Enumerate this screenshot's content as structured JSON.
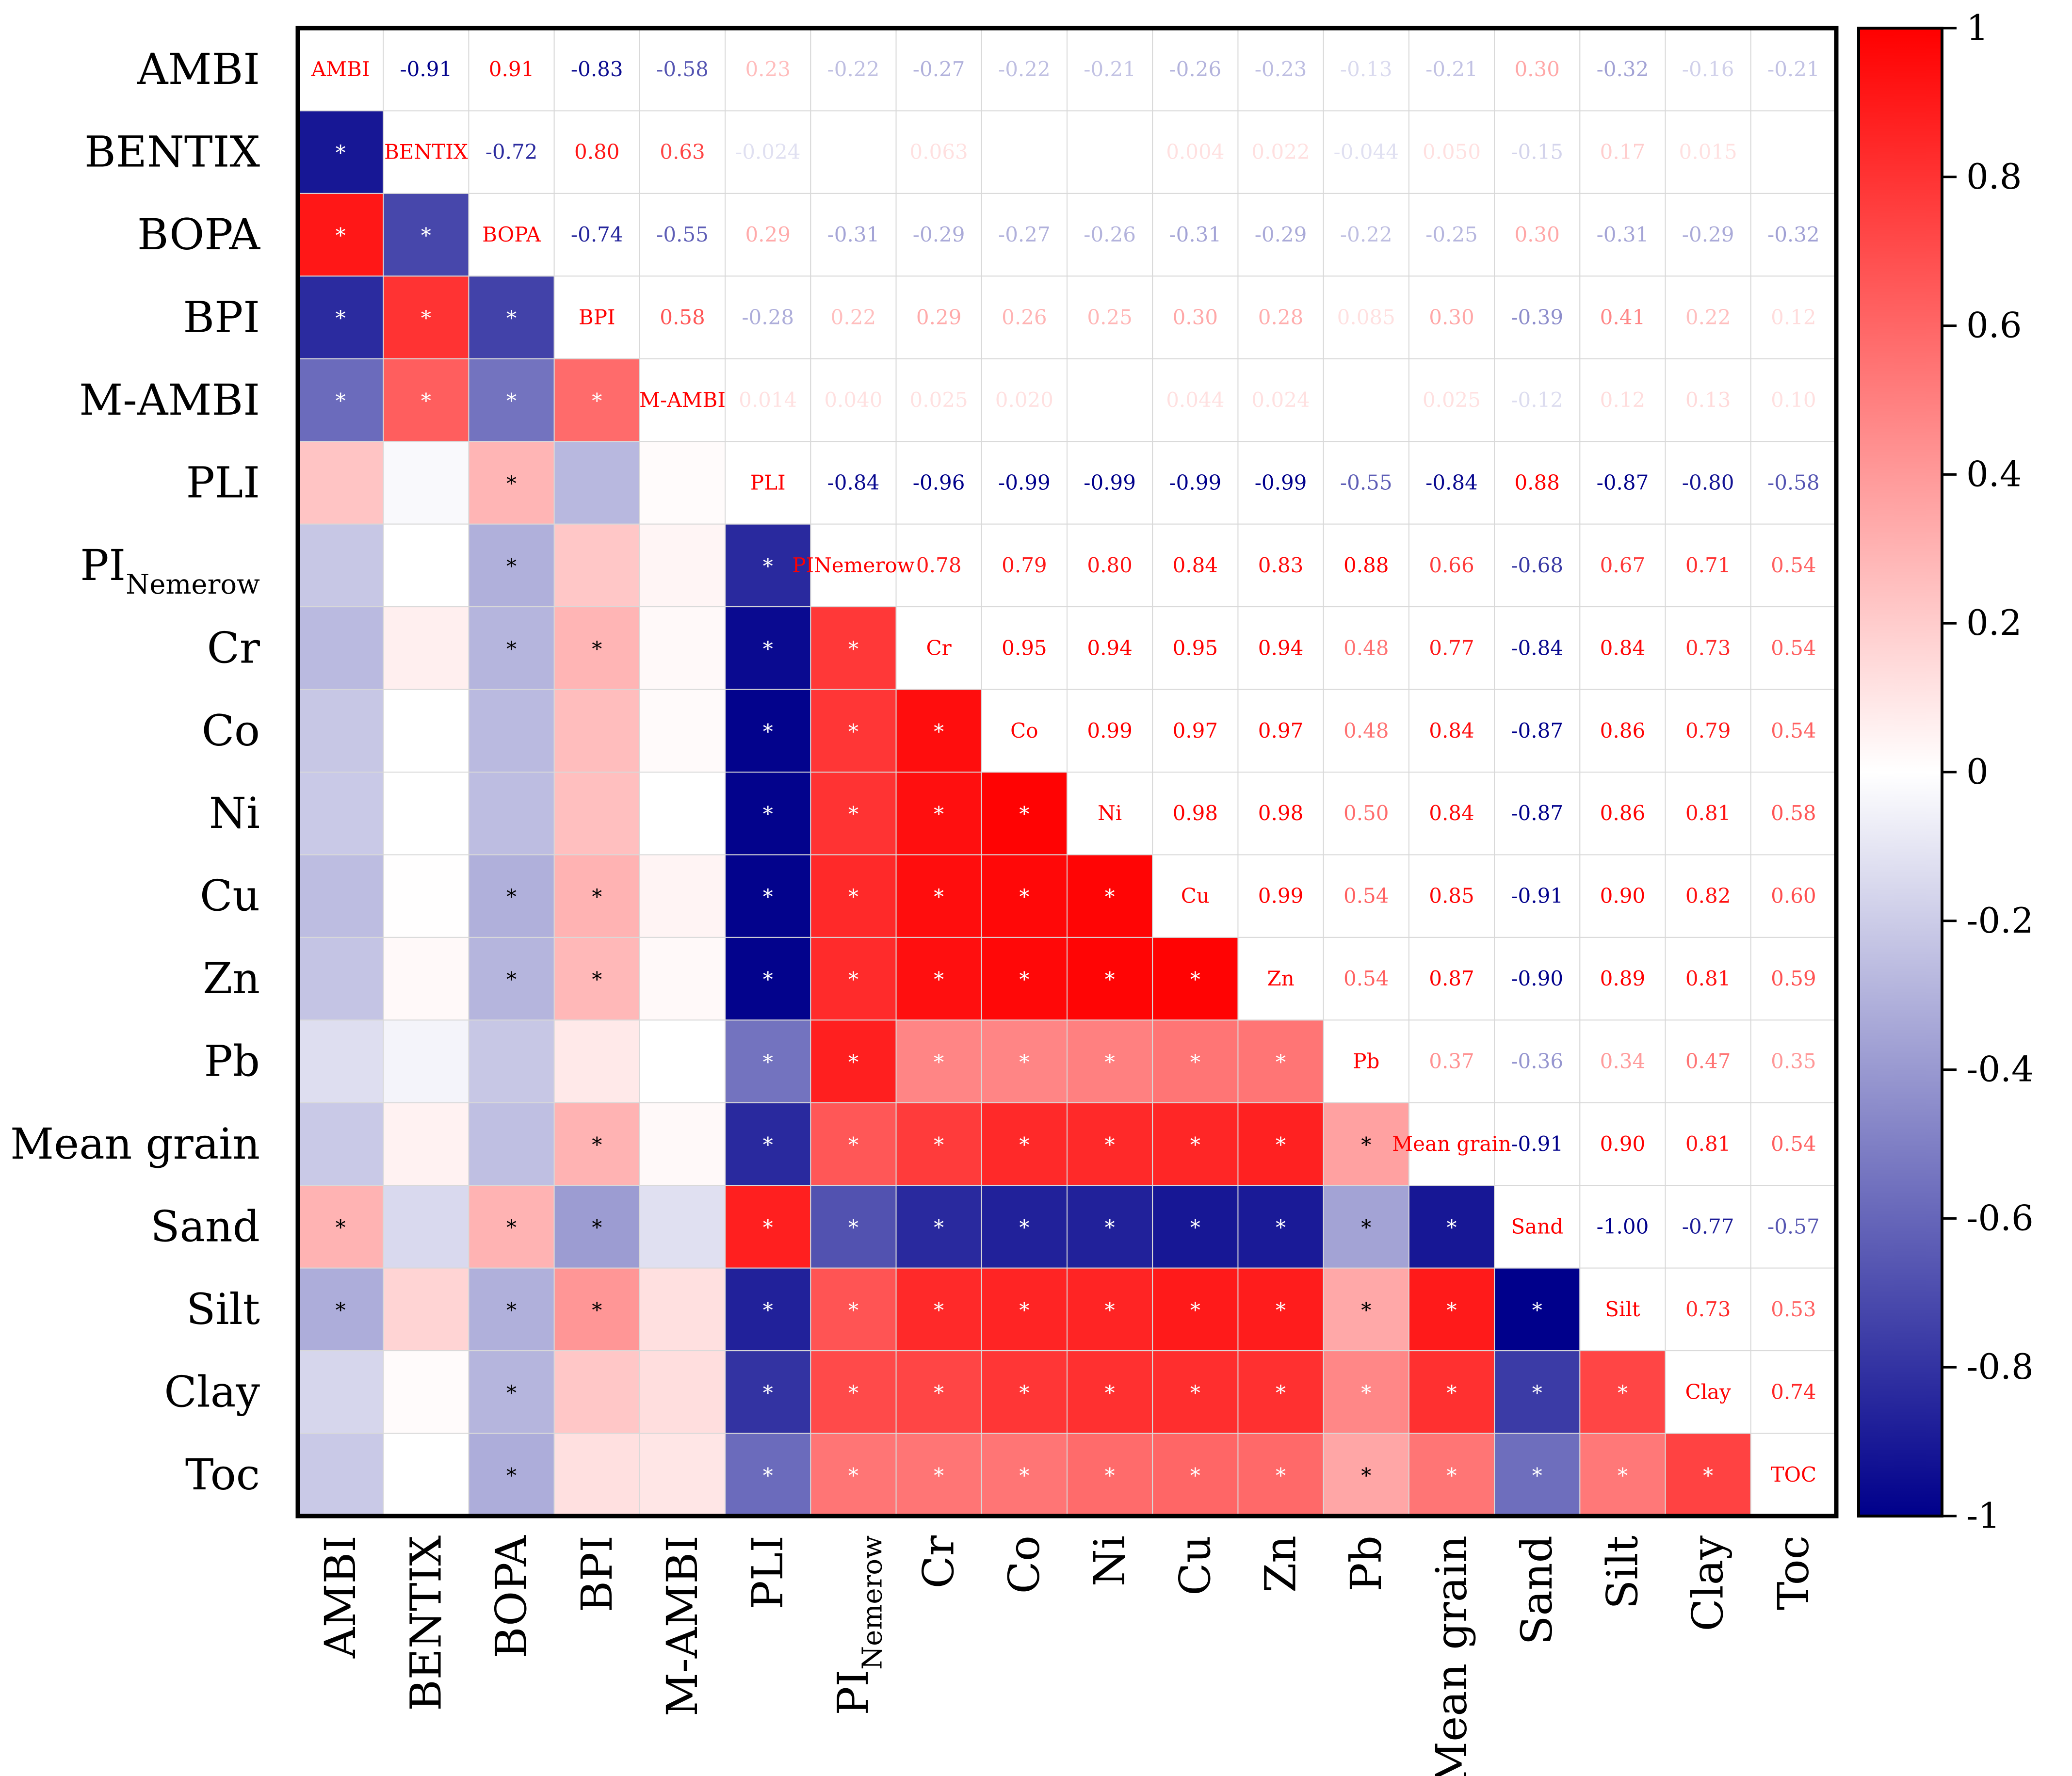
{
  "chart_data": {
    "type": "heatmap",
    "title": "",
    "xlabel": "",
    "ylabel": "",
    "variables": [
      "AMBI",
      "BENTIX",
      "BOPA",
      "BPI",
      "M-AMBI",
      "PLI",
      "PI_Nemerow",
      "Cr",
      "Co",
      "Ni",
      "Cu",
      "Zn",
      "Pb",
      "Mean grain",
      "Sand",
      "Silt",
      "Clay",
      "Toc"
    ],
    "row_labels": [
      {
        "text": "AMBI",
        "sub": ""
      },
      {
        "text": "BENTIX",
        "sub": ""
      },
      {
        "text": "BOPA",
        "sub": ""
      },
      {
        "text": "BPI",
        "sub": ""
      },
      {
        "text": "M-AMBI",
        "sub": ""
      },
      {
        "text": "PLI",
        "sub": ""
      },
      {
        "text": "PI",
        "sub": "Nemerow"
      },
      {
        "text": "Cr",
        "sub": ""
      },
      {
        "text": "Co",
        "sub": ""
      },
      {
        "text": "Ni",
        "sub": ""
      },
      {
        "text": "Cu",
        "sub": ""
      },
      {
        "text": "Zn",
        "sub": ""
      },
      {
        "text": "Pb",
        "sub": ""
      },
      {
        "text": "Mean grain",
        "sub": ""
      },
      {
        "text": "Sand",
        "sub": ""
      },
      {
        "text": "Silt",
        "sub": ""
      },
      {
        "text": "Clay",
        "sub": ""
      },
      {
        "text": "Toc",
        "sub": ""
      }
    ],
    "col_labels": [
      {
        "text": "AMBI",
        "sub": ""
      },
      {
        "text": "BENTIX",
        "sub": ""
      },
      {
        "text": "BOPA",
        "sub": ""
      },
      {
        "text": "BPI",
        "sub": ""
      },
      {
        "text": "M-AMBI",
        "sub": ""
      },
      {
        "text": "PLI",
        "sub": ""
      },
      {
        "text": "PI",
        "sub": "Nemerow"
      },
      {
        "text": "Cr",
        "sub": ""
      },
      {
        "text": "Co",
        "sub": ""
      },
      {
        "text": "Ni",
        "sub": ""
      },
      {
        "text": "Cu",
        "sub": ""
      },
      {
        "text": "Zn",
        "sub": ""
      },
      {
        "text": "Pb",
        "sub": ""
      },
      {
        "text": "Mean grain",
        "sub": ""
      },
      {
        "text": "Sand",
        "sub": ""
      },
      {
        "text": "Silt",
        "sub": ""
      },
      {
        "text": "Clay",
        "sub": ""
      },
      {
        "text": "Toc",
        "sub": ""
      }
    ],
    "diagonal_labels": [
      "AMBI",
      "BENTIX",
      "BOPA",
      "BPI",
      "M-AMBI",
      "PLI",
      "PINemerow",
      "Cr",
      "Co",
      "Ni",
      "Cu",
      "Zn",
      "Pb",
      "Mean grain",
      "Sand",
      "Silt",
      "Clay",
      "TOC"
    ],
    "upper_labels": [
      [
        "-0.91",
        "0.91",
        "-0.83",
        "-0.58",
        "0.23",
        "-0.22",
        "-0.27",
        "-0.22",
        "-0.21",
        "-0.26",
        "-0.23",
        "-0.13",
        "-0.21",
        "0.30",
        "-0.32",
        "-0.16",
        "-0.21"
      ],
      [
        "-0.72",
        "0.80",
        "0.63",
        "-0.024",
        "",
        "0.063",
        "",
        "",
        "0.004",
        "0.022",
        "-0.044",
        "0.050",
        "-0.15",
        "0.17",
        "0.015",
        ""
      ],
      [
        "-0.74",
        "-0.55",
        "0.29",
        "-0.31",
        "-0.29",
        "-0.27",
        "-0.26",
        "-0.31",
        "-0.29",
        "-0.22",
        "-0.25",
        "0.30",
        "-0.31",
        "-0.29",
        "-0.32"
      ],
      [
        "0.58",
        "-0.28",
        "0.22",
        "0.29",
        "0.26",
        "0.25",
        "0.30",
        "0.28",
        "0.085",
        "0.30",
        "-0.39",
        "0.41",
        "0.22",
        "0.12"
      ],
      [
        "0.014",
        "0.040",
        "0.025",
        "0.020",
        "",
        "0.044",
        "0.024",
        "",
        "0.025",
        "-0.12",
        "0.12",
        "0.13",
        "0.10"
      ],
      [
        "-0.84",
        "-0.96",
        "-0.99",
        "-0.99",
        "-0.99",
        "-0.99",
        "-0.55",
        "-0.84",
        "0.88",
        "-0.87",
        "-0.80",
        "-0.58"
      ],
      [
        "0.78",
        "0.79",
        "0.80",
        "0.84",
        "0.83",
        "0.88",
        "0.66",
        "-0.68",
        "0.67",
        "0.71",
        "0.54"
      ],
      [
        "0.95",
        "0.94",
        "0.95",
        "0.94",
        "0.48",
        "0.77",
        "-0.84",
        "0.84",
        "0.73",
        "0.54"
      ],
      [
        "0.99",
        "0.97",
        "0.97",
        "0.48",
        "0.84",
        "-0.87",
        "0.86",
        "0.79",
        "0.54"
      ],
      [
        "0.98",
        "0.98",
        "0.50",
        "0.84",
        "-0.87",
        "0.86",
        "0.81",
        "0.58"
      ],
      [
        "0.99",
        "0.54",
        "0.85",
        "-0.91",
        "0.90",
        "0.82",
        "0.60"
      ],
      [
        "0.54",
        "0.87",
        "-0.90",
        "0.89",
        "0.81",
        "0.59"
      ],
      [
        "0.37",
        "-0.36",
        "0.34",
        "0.47",
        "0.35"
      ],
      [
        "-0.91",
        "0.90",
        "0.81",
        "0.54"
      ],
      [
        "-1.00",
        "-0.77",
        "-0.57"
      ],
      [
        "0.73",
        "0.53"
      ],
      [
        "0.74"
      ],
      []
    ],
    "values": [
      [
        1,
        -0.91,
        0.91,
        -0.83,
        -0.58,
        0.23,
        -0.22,
        -0.27,
        -0.22,
        -0.21,
        -0.26,
        -0.23,
        -0.13,
        -0.21,
        0.3,
        -0.32,
        -0.16,
        -0.21
      ],
      [
        -0.91,
        1,
        -0.72,
        0.8,
        0.63,
        -0.024,
        0,
        0.063,
        0,
        0,
        0.004,
        0.022,
        -0.044,
        0.05,
        -0.15,
        0.17,
        0.015,
        0
      ],
      [
        0.91,
        -0.72,
        1,
        -0.74,
        -0.55,
        0.29,
        -0.31,
        -0.29,
        -0.27,
        -0.26,
        -0.31,
        -0.29,
        -0.22,
        -0.25,
        0.3,
        -0.31,
        -0.29,
        -0.32
      ],
      [
        -0.83,
        0.8,
        -0.74,
        1,
        0.58,
        -0.28,
        0.22,
        0.29,
        0.26,
        0.25,
        0.3,
        0.28,
        0.085,
        0.3,
        -0.39,
        0.41,
        0.22,
        0.12
      ],
      [
        -0.58,
        0.63,
        -0.55,
        0.58,
        1,
        0.014,
        0.04,
        0.025,
        0.02,
        0,
        0.044,
        0.024,
        0,
        0.025,
        -0.12,
        0.12,
        0.13,
        0.1
      ],
      [
        0.23,
        -0.024,
        0.29,
        -0.28,
        0.014,
        1,
        -0.84,
        -0.96,
        -0.99,
        -0.99,
        -0.99,
        -0.99,
        -0.55,
        -0.84,
        0.88,
        -0.87,
        -0.8,
        -0.58
      ],
      [
        -0.22,
        0,
        -0.31,
        0.22,
        0.04,
        -0.84,
        1,
        0.78,
        0.79,
        0.8,
        0.84,
        0.83,
        0.88,
        0.66,
        -0.68,
        0.67,
        0.71,
        0.54
      ],
      [
        -0.27,
        0.063,
        -0.29,
        0.29,
        0.025,
        -0.96,
        0.78,
        1,
        0.95,
        0.94,
        0.95,
        0.94,
        0.48,
        0.77,
        -0.84,
        0.84,
        0.73,
        0.54
      ],
      [
        -0.22,
        0,
        -0.27,
        0.26,
        0.02,
        -0.99,
        0.79,
        0.95,
        1,
        0.99,
        0.97,
        0.97,
        0.48,
        0.84,
        -0.87,
        0.86,
        0.79,
        0.54
      ],
      [
        -0.21,
        0,
        -0.26,
        0.25,
        0,
        -0.99,
        0.8,
        0.94,
        0.99,
        1,
        0.98,
        0.98,
        0.5,
        0.84,
        -0.87,
        0.86,
        0.81,
        0.58
      ],
      [
        -0.26,
        0.004,
        -0.31,
        0.3,
        0.044,
        -0.99,
        0.84,
        0.95,
        0.97,
        0.98,
        1,
        0.99,
        0.54,
        0.85,
        -0.91,
        0.9,
        0.82,
        0.6
      ],
      [
        -0.23,
        0.022,
        -0.29,
        0.28,
        0.024,
        -0.99,
        0.83,
        0.94,
        0.97,
        0.98,
        0.99,
        1,
        0.54,
        0.87,
        -0.9,
        0.89,
        0.81,
        0.59
      ],
      [
        -0.13,
        -0.044,
        -0.22,
        0.085,
        0,
        -0.55,
        0.88,
        0.48,
        0.48,
        0.5,
        0.54,
        0.54,
        1,
        0.37,
        -0.36,
        0.34,
        0.47,
        0.35
      ],
      [
        -0.21,
        0.05,
        -0.25,
        0.3,
        0.025,
        -0.84,
        0.66,
        0.77,
        0.84,
        0.84,
        0.85,
        0.87,
        0.37,
        1,
        -0.91,
        0.9,
        0.81,
        0.54
      ],
      [
        0.3,
        -0.15,
        0.3,
        -0.39,
        -0.12,
        0.88,
        -0.68,
        -0.84,
        -0.87,
        -0.87,
        -0.91,
        -0.9,
        -0.36,
        -0.91,
        1,
        -1.0,
        -0.77,
        -0.57
      ],
      [
        -0.32,
        0.17,
        -0.31,
        0.41,
        0.12,
        -0.87,
        0.67,
        0.84,
        0.86,
        0.86,
        0.9,
        0.89,
        0.34,
        0.9,
        -1.0,
        1,
        0.73,
        0.53
      ],
      [
        -0.16,
        0.015,
        -0.29,
        0.22,
        0.13,
        -0.8,
        0.71,
        0.73,
        0.79,
        0.81,
        0.82,
        0.81,
        0.47,
        0.81,
        -0.77,
        0.73,
        1,
        0.74
      ],
      [
        -0.21,
        0,
        -0.32,
        0.12,
        0.1,
        -0.58,
        0.54,
        0.54,
        0.54,
        0.58,
        0.6,
        0.59,
        0.35,
        0.54,
        -0.57,
        0.53,
        0.74,
        1
      ]
    ],
    "significance_marker": "*",
    "significant_lower": [
      [],
      [
        0
      ],
      [
        0,
        1
      ],
      [
        0,
        1,
        2
      ],
      [
        0,
        1,
        2,
        3
      ],
      [
        2
      ],
      [
        2,
        5
      ],
      [
        2,
        3,
        5,
        6
      ],
      [
        5,
        6,
        7
      ],
      [
        5,
        6,
        7,
        8
      ],
      [
        2,
        3,
        5,
        6,
        7,
        8,
        9
      ],
      [
        2,
        3,
        5,
        6,
        7,
        8,
        9,
        10
      ],
      [
        5,
        6,
        7,
        8,
        9,
        10,
        11
      ],
      [
        3,
        5,
        6,
        7,
        8,
        9,
        10,
        11,
        12
      ],
      [
        0,
        2,
        3,
        5,
        6,
        7,
        8,
        9,
        10,
        11,
        12,
        13
      ],
      [
        0,
        2,
        3,
        5,
        6,
        7,
        8,
        9,
        10,
        11,
        12,
        13,
        14
      ],
      [
        2,
        5,
        6,
        7,
        8,
        9,
        10,
        11,
        12,
        13,
        14,
        15
      ],
      [
        2,
        5,
        6,
        7,
        8,
        9,
        10,
        11,
        12,
        13,
        14,
        15,
        16
      ]
    ],
    "color_scale": {
      "min": -1,
      "max": 1,
      "low_color": "#00008b",
      "mid_color": "#ffffff",
      "high_color": "#ff0000",
      "ticks": [
        "-1",
        "-0.8",
        "-0.6",
        "-0.4",
        "-0.2",
        "0",
        "0.2",
        "0.4",
        "0.6",
        "0.8",
        "1"
      ],
      "tick_values": [
        -1,
        -0.8,
        -0.6,
        -0.4,
        -0.2,
        0,
        0.2,
        0.4,
        0.6,
        0.8,
        1
      ]
    },
    "legend_position": "right"
  }
}
